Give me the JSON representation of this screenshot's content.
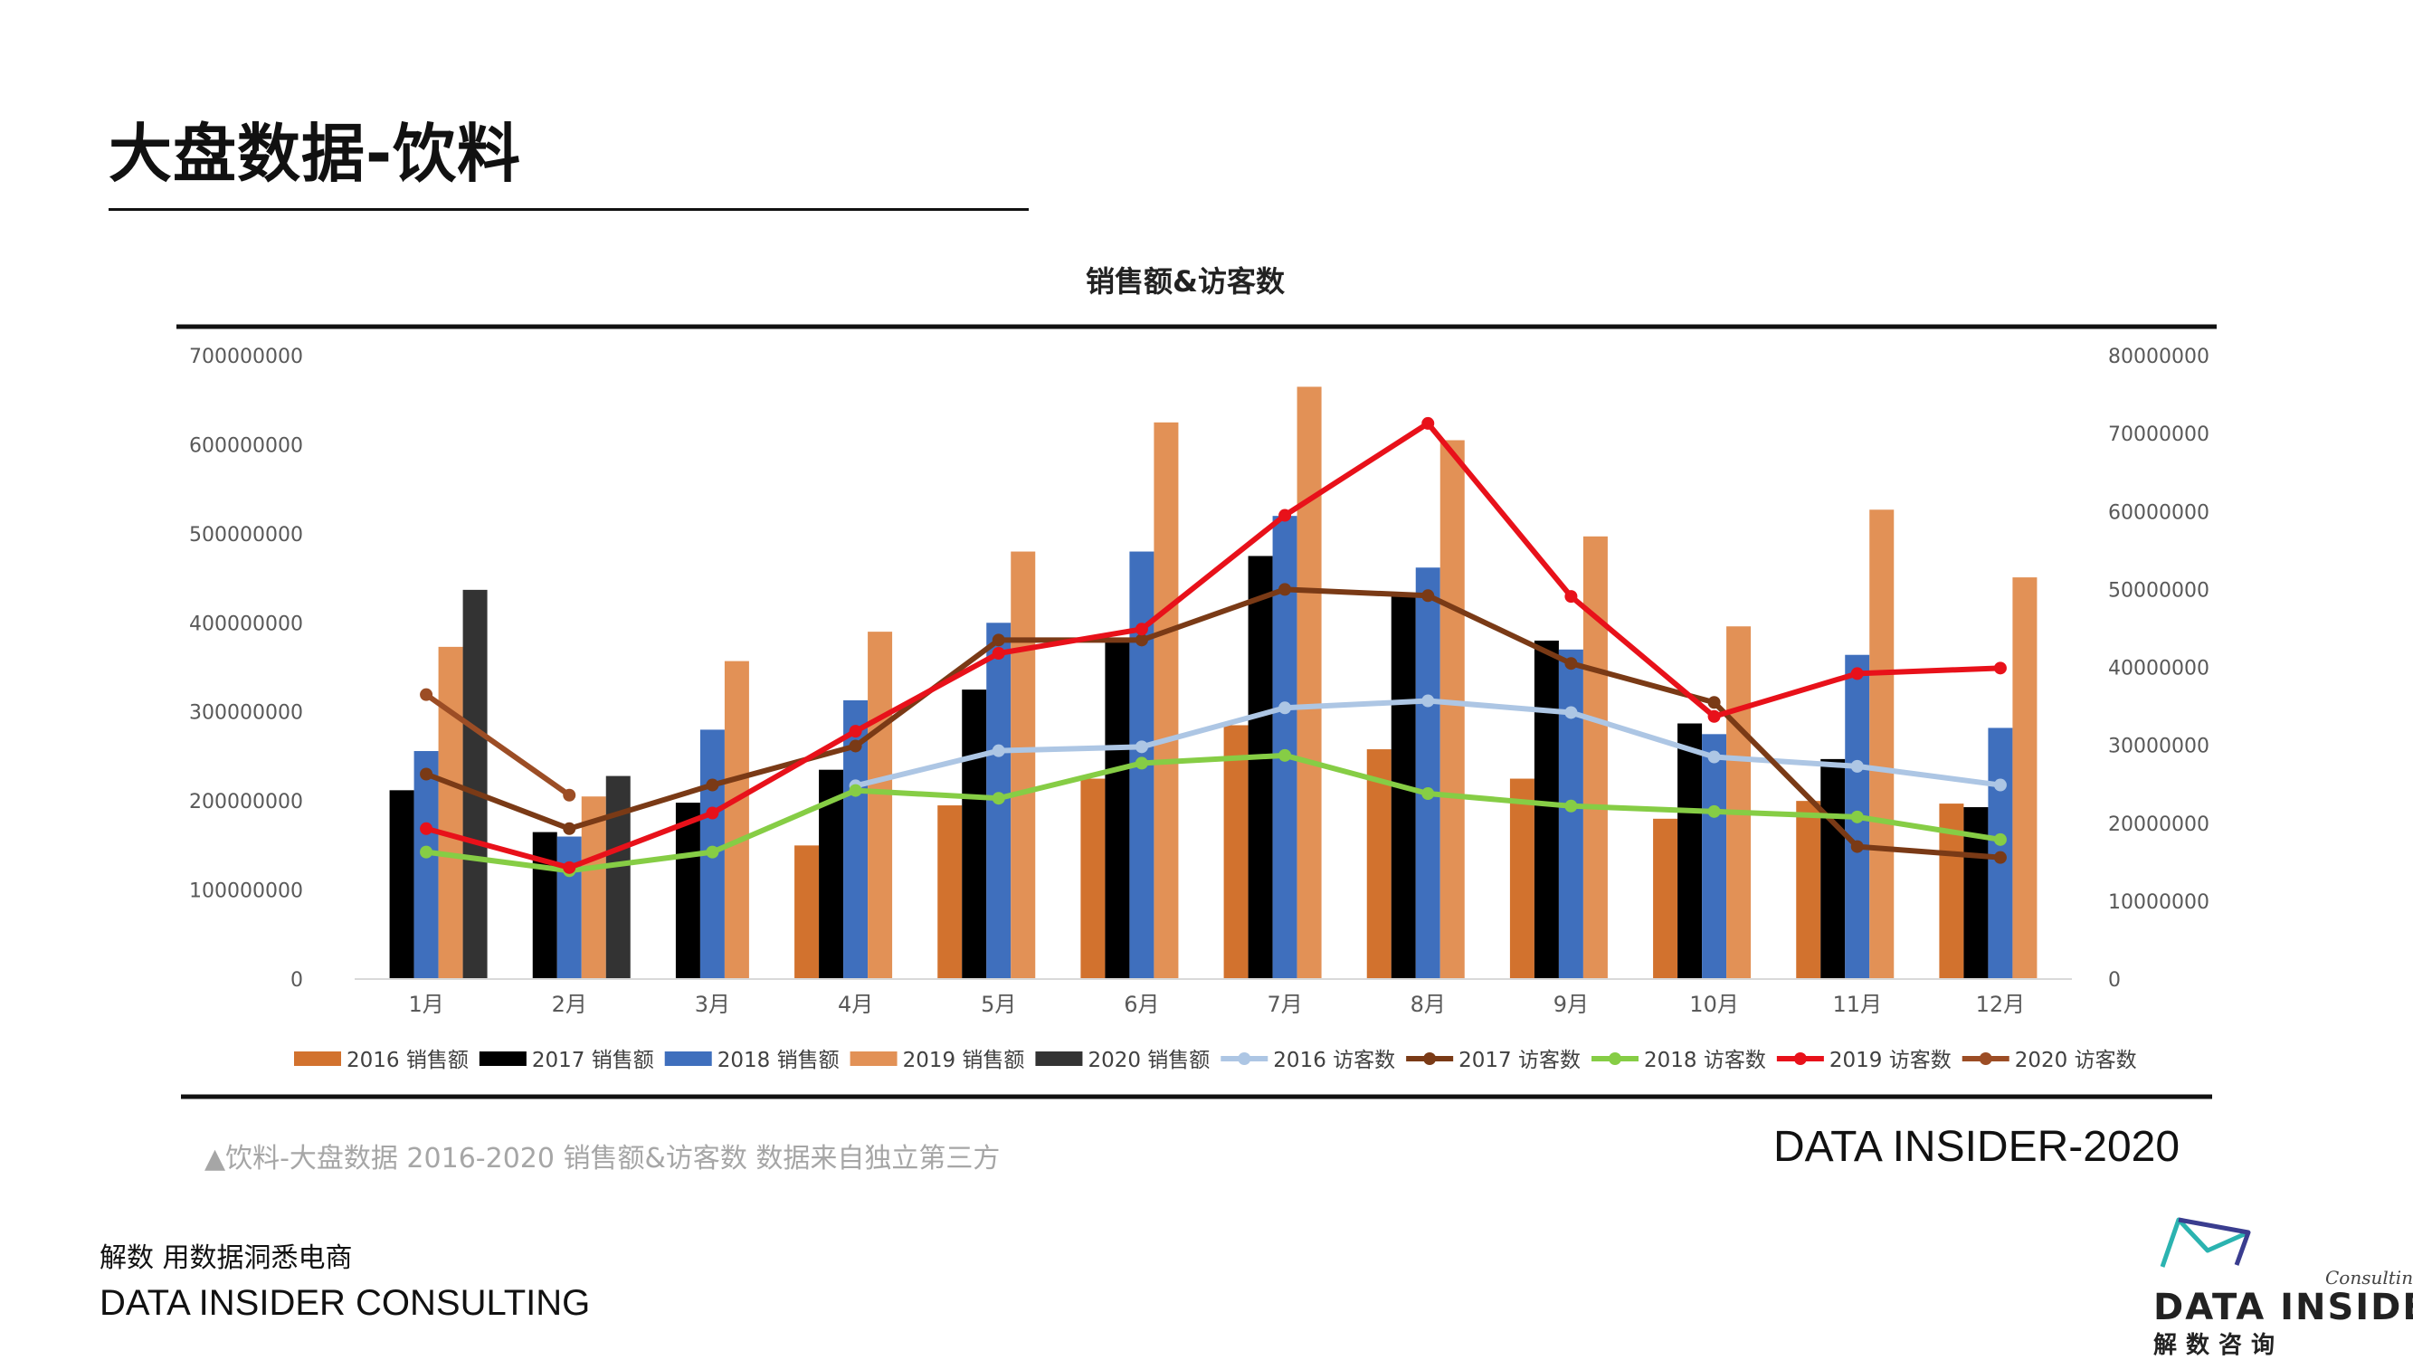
{
  "page": {
    "title": "大盘数据-饮料",
    "caption": "▲饮料-大盘数据 2016-2020 销售额&访客数 数据来自独立第三方",
    "brand_year": "DATA INSIDER-2020",
    "slogan": "解数 用数据洞悉电商",
    "company": "DATA INSIDER CONSULTING",
    "logo": {
      "sub": "Consulting",
      "name": "DATA INSIDER",
      "cn": "解数咨询"
    }
  },
  "chart_data": {
    "type": "bar+line",
    "title": "销售额&访客数",
    "categories": [
      "1月",
      "2月",
      "3月",
      "4月",
      "5月",
      "6月",
      "7月",
      "8月",
      "9月",
      "10月",
      "11月",
      "12月"
    ],
    "left_axis": {
      "min": 0,
      "max": 700000000,
      "step": 100000000,
      "ticks": [
        "0",
        "100000000",
        "200000000",
        "300000000",
        "400000000",
        "500000000",
        "600000000",
        "700000000"
      ]
    },
    "right_axis": {
      "min": 0,
      "max": 80000000,
      "step": 10000000,
      "ticks": [
        "0",
        "10000000",
        "20000000",
        "30000000",
        "40000000",
        "50000000",
        "60000000",
        "70000000",
        "80000000"
      ]
    },
    "bar_series": [
      {
        "name": "2016 销售额",
        "color": "#d2722e",
        "values": [
          null,
          null,
          null,
          150000000,
          195000000,
          225000000,
          285000000,
          258000000,
          225000000,
          180000000,
          200000000,
          197000000
        ]
      },
      {
        "name": "2017 销售额",
        "color": "#000000",
        "values": [
          212000000,
          165000000,
          198000000,
          235000000,
          325000000,
          380000000,
          475000000,
          430000000,
          380000000,
          287000000,
          247000000,
          193000000
        ]
      },
      {
        "name": "2018 销售额",
        "color": "#3f6fbd",
        "values": [
          256000000,
          160000000,
          280000000,
          313000000,
          400000000,
          480000000,
          520000000,
          462000000,
          370000000,
          275000000,
          364000000,
          282000000
        ]
      },
      {
        "name": "2019 销售额",
        "color": "#e29156",
        "values": [
          373000000,
          205000000,
          357000000,
          390000000,
          480000000,
          625000000,
          665000000,
          605000000,
          497000000,
          396000000,
          527000000,
          451000000
        ]
      },
      {
        "name": "2020 销售额",
        "color": "#333333",
        "values": [
          437000000,
          228000000,
          null,
          null,
          null,
          null,
          null,
          null,
          null,
          null,
          null,
          null
        ]
      }
    ],
    "line_series": [
      {
        "name": "2016 访客数",
        "color": "#adc6e4",
        "values": [
          null,
          null,
          null,
          24800000,
          29300000,
          29800000,
          34800000,
          35700000,
          34200000,
          28500000,
          27300000,
          24900000
        ]
      },
      {
        "name": "2017 访客数",
        "color": "#7a3a16",
        "values": [
          26300000,
          19300000,
          24900000,
          29900000,
          43500000,
          43500000,
          50000000,
          49200000,
          40500000,
          35500000,
          17000000,
          15600000
        ]
      },
      {
        "name": "2018 访客数",
        "color": "#86cd45",
        "values": [
          16300000,
          13900000,
          16300000,
          24200000,
          23200000,
          27700000,
          28700000,
          23800000,
          22200000,
          21500000,
          20800000,
          17900000
        ]
      },
      {
        "name": "2019 访客数",
        "color": "#e8111a",
        "values": [
          19300000,
          14300000,
          21300000,
          31800000,
          41800000,
          44900000,
          59500000,
          71300000,
          49100000,
          33700000,
          39200000,
          39900000
        ]
      },
      {
        "name": "2020 访客数",
        "color": "#9c4d25",
        "values": [
          36500000,
          23600000,
          null,
          null,
          null,
          null,
          null,
          null,
          null,
          null,
          null,
          null
        ]
      }
    ],
    "legend": [
      "2016 销售额",
      "2017 销售额",
      "2018 销售额",
      "2019 销售额",
      "2020 销售额",
      "2016 访客数",
      "2017 访客数",
      "2018 访客数",
      "2019 访客数",
      "2020 访客数"
    ],
    "legend_position": "bottom"
  }
}
